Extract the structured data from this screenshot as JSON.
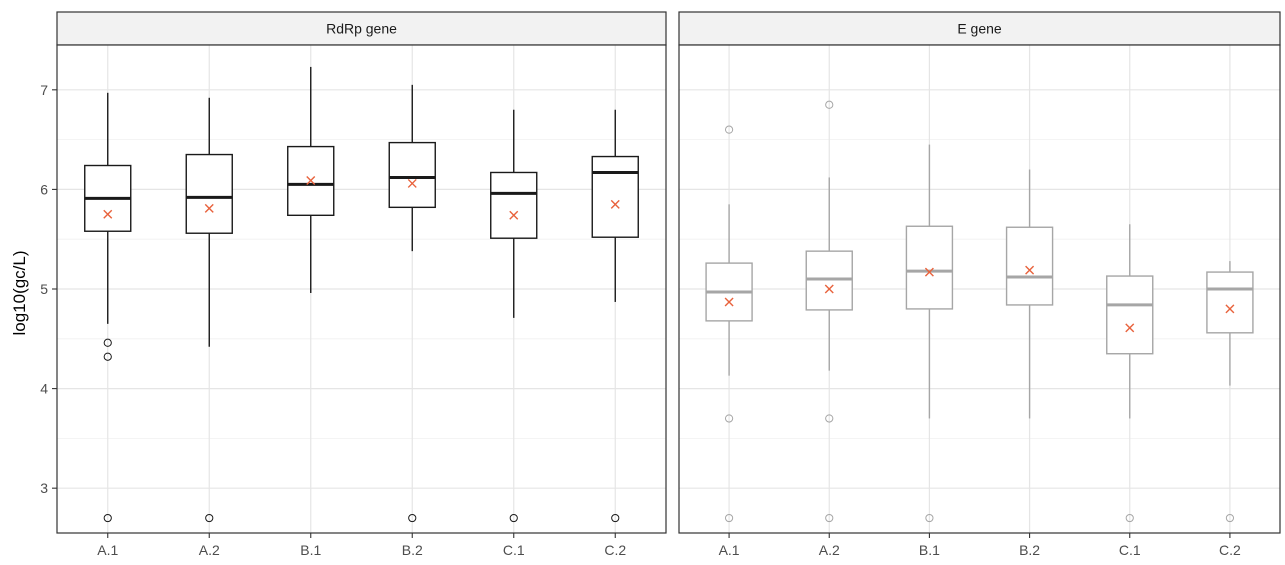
{
  "chart_data": {
    "type": "boxplot",
    "ylabel": "log10(gc/L)",
    "ylim": [
      2.55,
      7.45
    ],
    "yticks": [
      3,
      4,
      5,
      6,
      7
    ],
    "categories": [
      "A.1",
      "A.2",
      "B.1",
      "B.2",
      "C.1",
      "C.2"
    ],
    "grid": true,
    "colors": {
      "rdrp_box": "#1a1a1a",
      "e_box": "#a6a6a6",
      "mean_marker": "#e8623c",
      "grid": "#e5e5e5",
      "strip_fill": "#f2f2f2",
      "panel_border": "#333333"
    },
    "panels": [
      {
        "title": "RdRp gene",
        "boxes": [
          {
            "category": "A.1",
            "whisker_low": 4.65,
            "q1": 5.58,
            "median": 5.91,
            "q3": 6.24,
            "whisker_high": 6.97,
            "mean": 5.75,
            "outliers": [
              4.46,
              4.32,
              2.7
            ]
          },
          {
            "category": "A.2",
            "whisker_low": 4.42,
            "q1": 5.56,
            "median": 5.92,
            "q3": 6.35,
            "whisker_high": 6.92,
            "mean": 5.81,
            "outliers": [
              2.7
            ]
          },
          {
            "category": "B.1",
            "whisker_low": 4.96,
            "q1": 5.74,
            "median": 6.05,
            "q3": 6.43,
            "whisker_high": 7.23,
            "mean": 6.09,
            "outliers": []
          },
          {
            "category": "B.2",
            "whisker_low": 5.38,
            "q1": 5.82,
            "median": 6.12,
            "q3": 6.47,
            "whisker_high": 7.05,
            "mean": 6.06,
            "outliers": [
              2.7
            ]
          },
          {
            "category": "C.1",
            "whisker_low": 4.71,
            "q1": 5.51,
            "median": 5.96,
            "q3": 6.17,
            "whisker_high": 6.8,
            "mean": 5.74,
            "outliers": [
              2.7
            ]
          },
          {
            "category": "C.2",
            "whisker_low": 4.87,
            "q1": 5.52,
            "median": 6.17,
            "q3": 6.33,
            "whisker_high": 6.8,
            "mean": 5.85,
            "outliers": [
              2.7
            ]
          }
        ]
      },
      {
        "title": "E gene",
        "boxes": [
          {
            "category": "A.1",
            "whisker_low": 4.13,
            "q1": 4.68,
            "median": 4.97,
            "q3": 5.26,
            "whisker_high": 5.85,
            "mean": 4.87,
            "outliers": [
              6.6,
              3.7,
              2.7
            ]
          },
          {
            "category": "A.2",
            "whisker_low": 4.18,
            "q1": 4.79,
            "median": 5.1,
            "q3": 5.38,
            "whisker_high": 6.12,
            "mean": 5.0,
            "outliers": [
              6.85,
              3.7,
              2.7
            ]
          },
          {
            "category": "B.1",
            "whisker_low": 3.7,
            "q1": 4.8,
            "median": 5.18,
            "q3": 5.63,
            "whisker_high": 6.45,
            "mean": 5.17,
            "outliers": [
              2.7
            ]
          },
          {
            "category": "B.2",
            "whisker_low": 3.7,
            "q1": 4.84,
            "median": 5.12,
            "q3": 5.62,
            "whisker_high": 6.2,
            "mean": 5.19,
            "outliers": []
          },
          {
            "category": "C.1",
            "whisker_low": 3.7,
            "q1": 4.35,
            "median": 4.84,
            "q3": 5.13,
            "whisker_high": 5.65,
            "mean": 4.61,
            "outliers": [
              2.7
            ]
          },
          {
            "category": "C.2",
            "whisker_low": 4.03,
            "q1": 4.56,
            "median": 5.0,
            "q3": 5.17,
            "whisker_high": 5.28,
            "mean": 4.8,
            "outliers": [
              2.7
            ]
          }
        ]
      }
    ]
  }
}
